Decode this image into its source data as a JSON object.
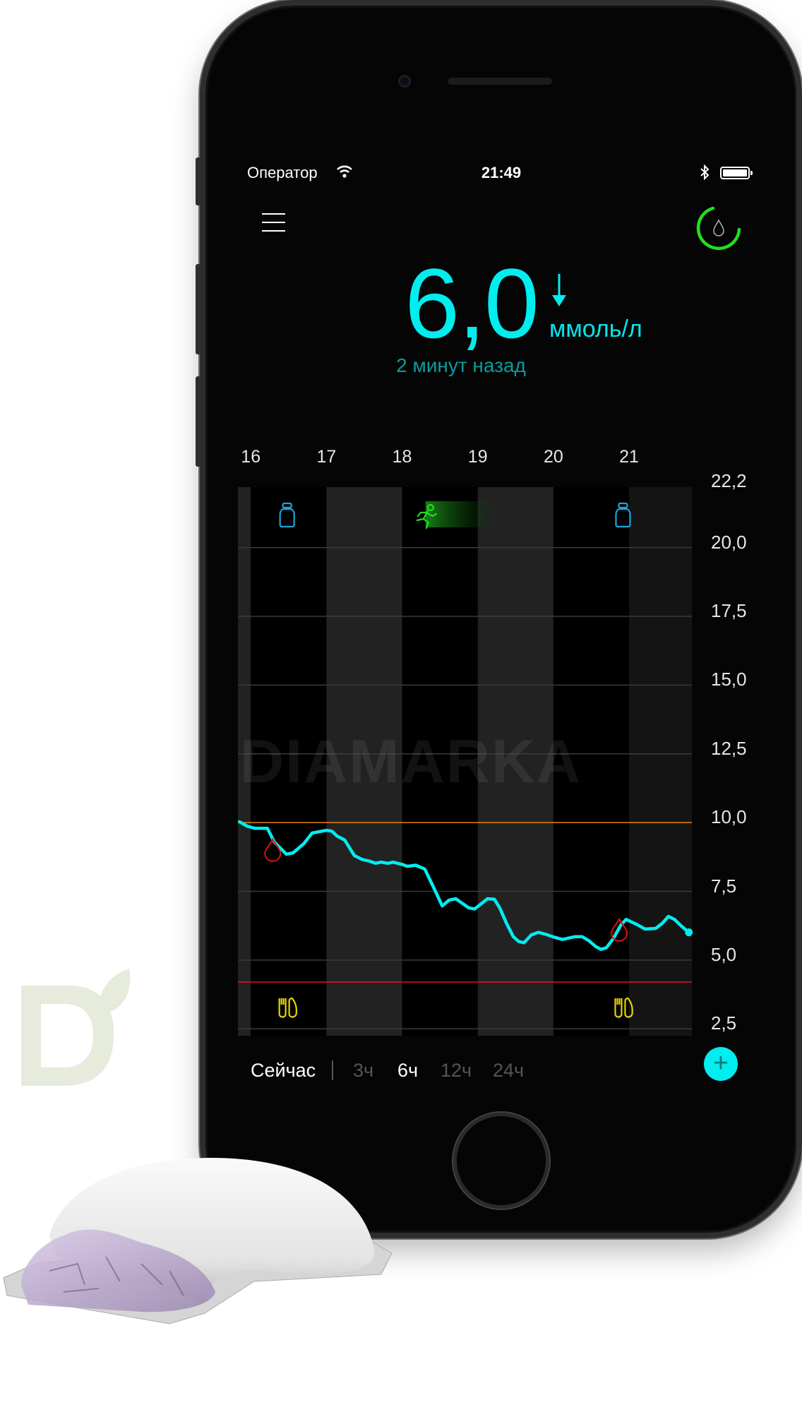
{
  "status_bar": {
    "carrier": "Оператор",
    "time": "21:49",
    "icons": [
      "wifi-icon",
      "bluetooth-icon",
      "battery-icon"
    ]
  },
  "header": {
    "menu_icon": "hamburger-menu-icon",
    "sensor_icon": "sensor-status-ring-icon",
    "sensor_ring_color": "#1fe01f"
  },
  "reading": {
    "value": "6,0",
    "unit": "ммоль/л",
    "age": "2 минут назад",
    "trend": "down",
    "trend_icon": "arrow-down-icon",
    "color": "#00eef0"
  },
  "range_tabs": {
    "now": "Сейчас",
    "options": [
      {
        "label": "3ч",
        "active": false
      },
      {
        "label": "6ч",
        "active": true
      },
      {
        "label": "12ч",
        "active": false
      },
      {
        "label": "24ч",
        "active": false
      }
    ]
  },
  "add_button": {
    "label": "+",
    "icon": "plus-icon"
  },
  "watermark": "DIAMARKA",
  "colors": {
    "glucose_line": "#00eef0",
    "high_line": "#e8820c",
    "low_line": "#e0103a",
    "insulin": "#1aa6d8",
    "activity": "#22dd22",
    "meal": "#e8d400",
    "blood_check": "#e01010",
    "band": "#222222"
  },
  "chart_data": {
    "type": "line",
    "grid": true,
    "xlim": [
      15.83,
      21.83
    ],
    "ylim": [
      2.25,
      22.2
    ],
    "x_ticks": [
      {
        "label": "16",
        "value": 16
      },
      {
        "label": "17",
        "value": 17
      },
      {
        "label": "18",
        "value": 18
      },
      {
        "label": "19",
        "value": 19
      },
      {
        "label": "20",
        "value": 20
      },
      {
        "label": "21",
        "value": 21
      }
    ],
    "y_ticks": [
      {
        "label": "22,2",
        "value": 22.2
      },
      {
        "label": "20,0",
        "value": 20
      },
      {
        "label": "17,5",
        "value": 17.5
      },
      {
        "label": "15,0",
        "value": 15
      },
      {
        "label": "12,5",
        "value": 12.5
      },
      {
        "label": "10,0",
        "value": 10
      },
      {
        "label": "7,5",
        "value": 7.5
      },
      {
        "label": "5,0",
        "value": 5
      },
      {
        "label": "2,5",
        "value": 2.5
      }
    ],
    "high_threshold": 10,
    "low_threshold": 4.2,
    "series": [
      {
        "points": [
          [
            15.85,
            10.03
          ],
          [
            15.96,
            9.86
          ],
          [
            16.06,
            9.79
          ],
          [
            16.22,
            9.79
          ],
          [
            16.31,
            9.3
          ],
          [
            16.47,
            8.85
          ],
          [
            16.56,
            8.9
          ],
          [
            16.7,
            9.23
          ],
          [
            16.81,
            9.62
          ],
          [
            17.0,
            9.72
          ],
          [
            17.07,
            9.69
          ],
          [
            17.14,
            9.51
          ],
          [
            17.24,
            9.37
          ],
          [
            17.37,
            8.8
          ],
          [
            17.47,
            8.66
          ],
          [
            17.58,
            8.59
          ],
          [
            17.65,
            8.52
          ],
          [
            17.72,
            8.56
          ],
          [
            17.81,
            8.52
          ],
          [
            17.88,
            8.56
          ],
          [
            18.0,
            8.48
          ],
          [
            18.07,
            8.41
          ],
          [
            18.18,
            8.45
          ],
          [
            18.3,
            8.31
          ],
          [
            18.41,
            7.68
          ],
          [
            18.53,
            6.97
          ],
          [
            18.62,
            7.18
          ],
          [
            18.71,
            7.23
          ],
          [
            18.88,
            6.9
          ],
          [
            18.96,
            6.86
          ],
          [
            19.13,
            7.23
          ],
          [
            19.22,
            7.21
          ],
          [
            19.29,
            6.9
          ],
          [
            19.38,
            6.34
          ],
          [
            19.47,
            5.85
          ],
          [
            19.54,
            5.68
          ],
          [
            19.61,
            5.63
          ],
          [
            19.71,
            5.92
          ],
          [
            19.8,
            6.01
          ],
          [
            19.92,
            5.92
          ],
          [
            19.99,
            5.85
          ],
          [
            20.12,
            5.75
          ],
          [
            20.28,
            5.85
          ],
          [
            20.38,
            5.85
          ],
          [
            20.47,
            5.7
          ],
          [
            20.56,
            5.49
          ],
          [
            20.63,
            5.39
          ],
          [
            20.7,
            5.45
          ],
          [
            20.79,
            5.77
          ],
          [
            20.89,
            6.27
          ],
          [
            20.96,
            6.48
          ],
          [
            21.1,
            6.3
          ],
          [
            21.21,
            6.13
          ],
          [
            21.35,
            6.15
          ],
          [
            21.44,
            6.34
          ],
          [
            21.52,
            6.59
          ],
          [
            21.6,
            6.48
          ],
          [
            21.69,
            6.24
          ],
          [
            21.79,
            6.01
          ]
        ]
      }
    ],
    "events": {
      "insulin": [
        16.48,
        20.92
      ],
      "activity": [
        {
          "start": 18.18,
          "end": 19.25
        }
      ],
      "meals": [
        16.48,
        20.92
      ],
      "blood_glucose_checks": [
        {
          "x": 16.29,
          "y": 8.98
        },
        {
          "x": 20.87,
          "y": 6.08
        }
      ]
    }
  }
}
